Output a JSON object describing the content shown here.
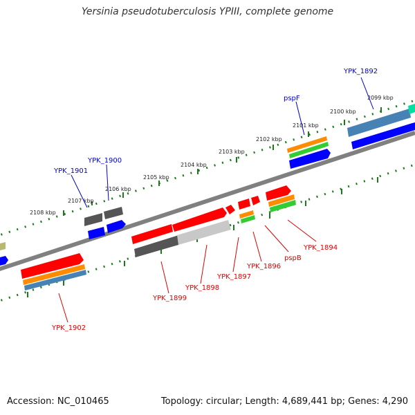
{
  "title": "Yersinia pseudotuberculosis YPIII, complete genome",
  "footer": {
    "accession": "Accession: NC_010465",
    "summary": "Topology: circular; Length: 4,689,441 bp; Genes: 4,290"
  },
  "colors": {
    "backbone": "#808080",
    "tick_dots": "#1a7a1a",
    "gene_red": "#ff0000",
    "gene_gray": "#555555",
    "gene_blue": "#0000ff",
    "orange": "#ff8c00",
    "green": "#33cc33",
    "steel_blue": "#4682b4",
    "label_blue": "#0000cc",
    "label_red": "#dd0000"
  },
  "ticks": {
    "top": [
      "2108 kbp",
      "2107 kbp",
      "2106 kbp",
      "2105 kbp",
      "2104 kbp",
      "2103 kbp",
      "2102 kbp",
      "2101 kbp",
      "2100 kbp",
      "2099 kbp"
    ]
  },
  "gene_labels": {
    "top": [
      "YPK_1901",
      "YPK_1900",
      "pspF",
      "YPK_1892"
    ],
    "bottom": [
      "YPK_1902",
      "YPK_1899",
      "YPK_1898",
      "YPK_1897",
      "YPK_1896",
      "pspB",
      "YPK_1894"
    ]
  }
}
